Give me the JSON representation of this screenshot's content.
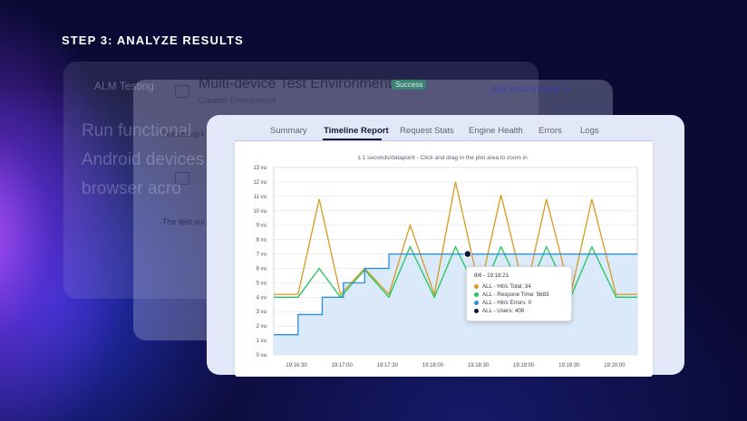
{
  "heading": "STEP 3: ANALYZE RESULTS",
  "ghost_back": {
    "title": "ALM Testing",
    "line1": "Run functional",
    "line2": "Android devices",
    "line3": "browser acro"
  },
  "ghost_mid": {
    "env_title": "Multi-device Test Environment",
    "env_status": "Success",
    "env_subtitle": "Created Environment",
    "env_link": "Edit environment",
    "text1": "I've set up t",
    "text2": "The test sui"
  },
  "tabs": [
    "Summary",
    "Timeline Report",
    "Request Stats",
    "Engine Health",
    "Errors",
    "Logs"
  ],
  "active_tab": "Timeline Report",
  "chart_subtitle": "1:1 seconds/datapoint - Click and drag in the plot area to zoom in",
  "tooltip": {
    "title": "8/6 - 19:18:21",
    "rows": [
      {
        "label": "ALL - Hit/s Total: 34",
        "color": "#d69a1e"
      },
      {
        "label": "ALL - Respone Time: 5683",
        "color": "#22c55e"
      },
      {
        "label": "ALL - Hit/s Errors: 0",
        "color": "#2a8de0"
      },
      {
        "label": "ALL - Users: 408",
        "color": "#14163a"
      }
    ]
  },
  "colors": {
    "hits": "#d69a1e",
    "response": "#22c55e",
    "users": "#2a8de0",
    "users_fill": "#dbeafa"
  },
  "chart_data": {
    "type": "line",
    "title": "1:1 seconds/datapoint - Click and drag in the plot area to zoom in",
    "yticks": [
      "0 vu",
      "1 vu",
      "2 vu",
      "3 vu",
      "4 vu",
      "5 vu",
      "6 vu",
      "7 vu",
      "8 vu",
      "9 vu",
      "10 vu",
      "11 vu",
      "12 vu",
      "13 vu"
    ],
    "ylim": [
      0,
      13
    ],
    "xticks": [
      "19:16:30",
      "19:17:00",
      "19:17:30",
      "19:18:00",
      "19:18:30",
      "19:19:00",
      "19:19:30",
      "19:20:00"
    ],
    "xlim": [
      0,
      240
    ],
    "xtick_values": [
      15,
      45,
      75,
      105,
      135,
      165,
      195,
      225
    ],
    "grid": true,
    "series": [
      {
        "name": "ALL - Hit/s Total",
        "step": false,
        "x": [
          0,
          16,
          30,
          44,
          60,
          76,
          90,
          106,
          120,
          136,
          150,
          166,
          180,
          196,
          210,
          226,
          240
        ],
        "y": [
          4.2,
          4.2,
          10.8,
          4.2,
          6,
          4.2,
          9,
          4.2,
          12,
          4.5,
          11.1,
          4.2,
          10.8,
          4.2,
          10.8,
          4.2,
          4.2
        ]
      },
      {
        "name": "ALL - Respone Time",
        "step": false,
        "x": [
          0,
          16,
          30,
          44,
          60,
          76,
          90,
          106,
          120,
          136,
          150,
          166,
          180,
          196,
          210,
          226,
          240
        ],
        "y": [
          4,
          4,
          6,
          4,
          5.9,
          4,
          7.5,
          4,
          7.5,
          4,
          7.5,
          4,
          7.5,
          4,
          7.5,
          4,
          4
        ]
      },
      {
        "name": "ALL - Users",
        "step": true,
        "x": [
          0,
          16,
          32,
          46,
          60,
          76,
          90,
          240
        ],
        "y": [
          1.4,
          2.8,
          4,
          5,
          6,
          7,
          7,
          7
        ]
      }
    ],
    "marker": {
      "x": 128,
      "y": 7
    }
  }
}
